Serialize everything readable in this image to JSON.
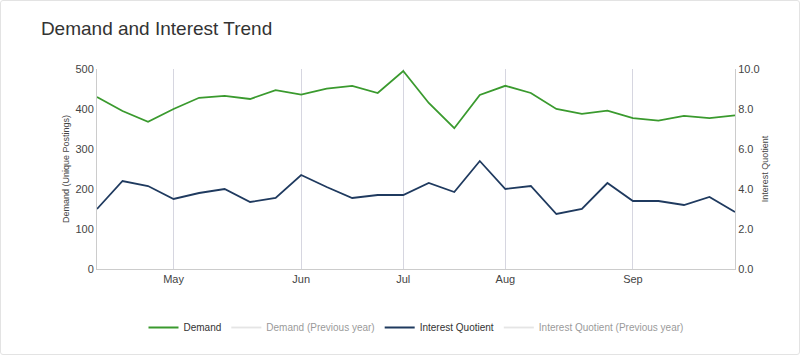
{
  "chart_data": {
    "type": "line",
    "title": "Demand and Interest Trend",
    "y_label": "Demand (Unique Postings)",
    "y2_label": "Interest Quotient",
    "categories": [
      null,
      null,
      null,
      "May",
      null,
      null,
      null,
      null,
      "Jun",
      null,
      null,
      null,
      "Jul",
      null,
      null,
      null,
      "Aug",
      null,
      null,
      null,
      null,
      "Sep",
      null,
      null,
      null,
      null
    ],
    "series": [
      {
        "name": "Demand",
        "color": "#3a9a2e",
        "values": [
          430,
          395,
          368,
          400,
          428,
          433,
          425,
          447,
          436,
          451,
          458,
          440,
          495,
          415,
          352,
          435,
          458,
          440,
          400,
          388,
          396,
          377,
          371,
          383,
          377,
          384
        ]
      },
      {
        "name": "Demand (Previous year)",
        "color": "#cccccc",
        "values": [
          null,
          null,
          null,
          null,
          null,
          null,
          null,
          null,
          null,
          null,
          null,
          null,
          null,
          null,
          null,
          null,
          null,
          null,
          null,
          null,
          null,
          null,
          null,
          null,
          null,
          null
        ]
      },
      {
        "name": "Interest Quotient",
        "color": "#1f3a5f",
        "axis": "y2",
        "values": [
          3.0,
          4.4,
          4.15,
          3.5,
          3.8,
          4.0,
          3.35,
          3.55,
          4.7,
          4.1,
          3.55,
          3.7,
          3.7,
          4.3,
          3.85,
          5.4,
          4.0,
          4.15,
          2.75,
          3.0,
          4.3,
          3.4,
          3.4,
          3.2,
          3.6,
          2.85
        ]
      },
      {
        "name": "Interest Quotient (Previous year)",
        "color": "#cccccc",
        "axis": "y2",
        "values": [
          null,
          null,
          null,
          null,
          null,
          null,
          null,
          null,
          null,
          null,
          null,
          null,
          null,
          null,
          null,
          null,
          null,
          null,
          null,
          null,
          null,
          null,
          null,
          null,
          null,
          null
        ]
      }
    ],
    "ylim": [
      0,
      500
    ],
    "yticks": [
      0,
      100,
      200,
      300,
      400,
      500
    ],
    "y2lim": [
      0,
      10
    ],
    "y2ticks": [
      {
        "value": 0,
        "label": "0.0"
      },
      {
        "value": 2,
        "label": "2.0"
      },
      {
        "value": 4,
        "label": "4.0"
      },
      {
        "value": 6,
        "label": "6.0"
      },
      {
        "value": 8,
        "label": "8.0"
      },
      {
        "value": 10,
        "label": "10.0"
      }
    ],
    "grid": true,
    "legend": "bottom"
  }
}
